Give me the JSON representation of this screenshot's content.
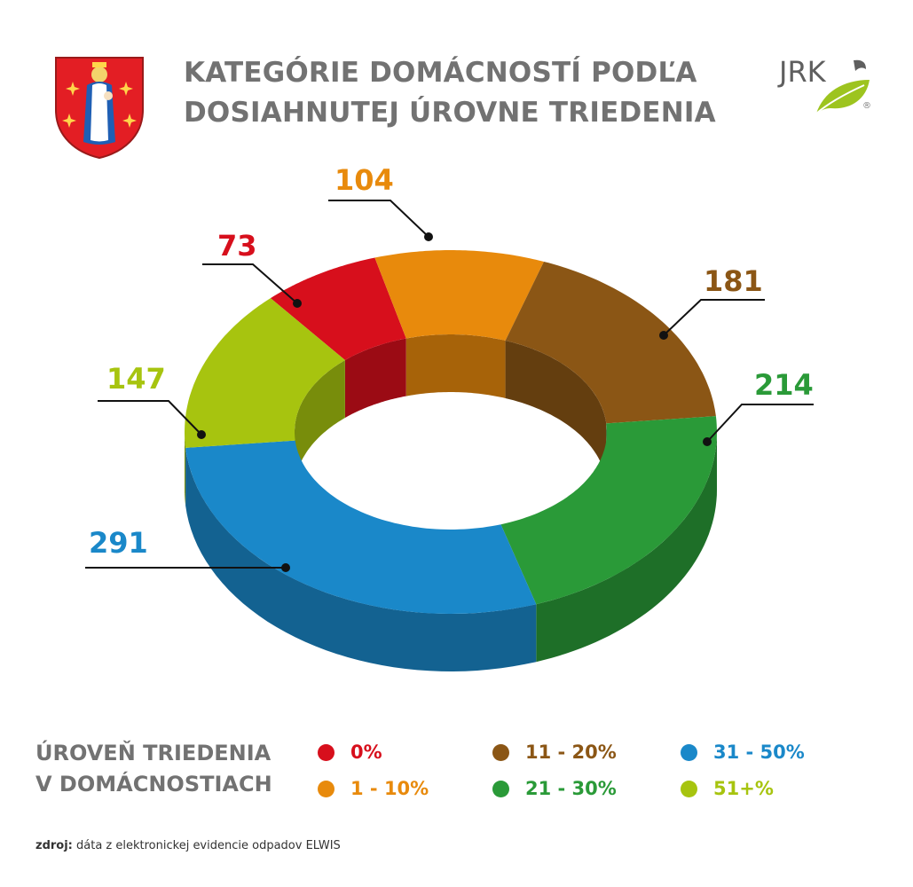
{
  "header": {
    "title_line1": "KATEGÓRIE DOMÁCNOSTÍ PODĽA",
    "title_line2": "DOSIAHNUTEJ ÚROVNE TRIEDENIA"
  },
  "logo": {
    "icon": "jrk-logo-icon",
    "text": "JRK",
    "registered": "®"
  },
  "crest": {
    "icon": "town-coat-of-arms-icon"
  },
  "chart_data": {
    "type": "pie",
    "variant": "3d-donut",
    "categories": [
      "0%",
      "1 - 10%",
      "11 - 20%",
      "21 - 30%",
      "31 - 50%",
      "51+%"
    ],
    "values": [
      73,
      104,
      181,
      214,
      291,
      147
    ],
    "colors": [
      "#d70f1c",
      "#e88a0c",
      "#8b5615",
      "#2a9a38",
      "#1a88c9",
      "#a7c40f"
    ],
    "legend_title_line1": "ÚROVEŇ TRIEDENIA",
    "legend_title_line2": "V DOMÁCNOSTIACH",
    "legend_position": "bottom"
  },
  "source": {
    "label": "zdroj:",
    "text": "dáta z elektronickej evidencie odpadov ELWIS"
  }
}
